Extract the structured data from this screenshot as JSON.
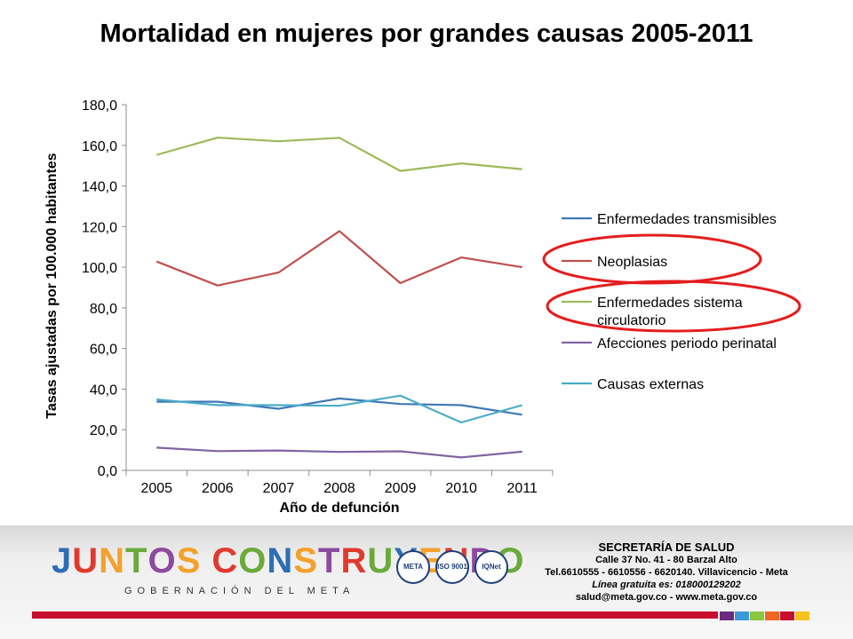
{
  "title": "Mortalidad en mujeres por grandes causas 2005-2011",
  "chart_data": {
    "type": "line",
    "title": "Mortalidad en mujeres por grandes causas 2005-2011",
    "xlabel": "Año de defunción",
    "ylabel": "Tasas ajustadas por 100.000 habitantes",
    "categories": [
      "2005",
      "2006",
      "2007",
      "2008",
      "2009",
      "2010",
      "2011"
    ],
    "yticks": [
      "0,0",
      "20,0",
      "40,0",
      "60,0",
      "80,0",
      "100,0",
      "120,0",
      "140,0",
      "160,0",
      "180,0"
    ],
    "ylim": [
      0,
      180
    ],
    "grid": false,
    "legend_position": "right",
    "highlighted_series": [
      "Neoplasias",
      "Enfermedades sistema circulatorio"
    ],
    "series": [
      {
        "name": "Enfermedades transmisibles",
        "legend_lines": [
          "Enfermedades transmisibles"
        ],
        "color": "#3f78b4",
        "values": [
          33.8,
          33.8,
          30.3,
          35.4,
          32.7,
          32.1,
          27.4
        ]
      },
      {
        "name": "Neoplasias",
        "legend_lines": [
          "Neoplasias"
        ],
        "color": "#c0504d",
        "values": [
          102.8,
          91.0,
          97.4,
          117.8,
          92.2,
          104.8,
          100.0
        ]
      },
      {
        "name": "Enfermedades sistema circulatorio",
        "legend_lines": [
          "Enfermedades sistema",
          "circulatorio"
        ],
        "color": "#9bbb59",
        "values": [
          155.3,
          163.8,
          162.0,
          163.7,
          147.4,
          151.1,
          148.3
        ]
      },
      {
        "name": "Afecciones periodo perinatal",
        "legend_lines": [
          "Afecciones periodo perinatal"
        ],
        "color": "#8064a2",
        "values": [
          11.2,
          9.5,
          9.8,
          9.1,
          9.4,
          6.4,
          9.2
        ]
      },
      {
        "name": "Causas externas",
        "legend_lines": [
          "Causas externas"
        ],
        "color": "#4bacc6",
        "values": [
          34.9,
          32.1,
          32.1,
          31.8,
          36.8,
          23.6,
          32.1
        ]
      }
    ]
  },
  "footer": {
    "logo_text": "JUNTOS CONSTRUYENDO",
    "logo_letters": [
      "J",
      "U",
      "N",
      "T",
      "O",
      "S",
      " ",
      "C",
      "O",
      "N",
      "S",
      "T",
      "R",
      "U",
      "Y",
      "E",
      "N",
      "D",
      "O"
    ],
    "logo_colors": [
      "#2e6db4",
      "#e03a2f",
      "#f4a12b",
      "#6aaa3a",
      "#8e4a9e",
      "#f4a12b",
      "#ffffff",
      "#e03a2f",
      "#6aaa3a",
      "#2e6db4",
      "#f4a12b",
      "#8e4a9e",
      "#e03a2f",
      "#6aaa3a",
      "#2e6db4",
      "#f4a12b",
      "#e03a2f",
      "#8e4a9e",
      "#6aaa3a"
    ],
    "logo_subtitle": "GOBERNACIÓN DEL META",
    "seal_labels": [
      "META",
      "ISO 9001",
      "IQNet"
    ],
    "contact_title": "SECRETARÍA DE SALUD",
    "contact_address": "Calle 37 No. 41 - 80 Barzal Alto",
    "contact_phone": "Tel.6610555 - 6610556 - 6620140. Villavicencio - Meta",
    "contact_line": "Línea gratuita es: 018000129202",
    "contact_email": "salud@meta.gov.co - www.meta.gov.co",
    "stripe_colors": [
      "#6b2a7e",
      "#3a9ad9",
      "#8dc63f",
      "#f26522",
      "#c8102e",
      "#f7c21a"
    ]
  }
}
